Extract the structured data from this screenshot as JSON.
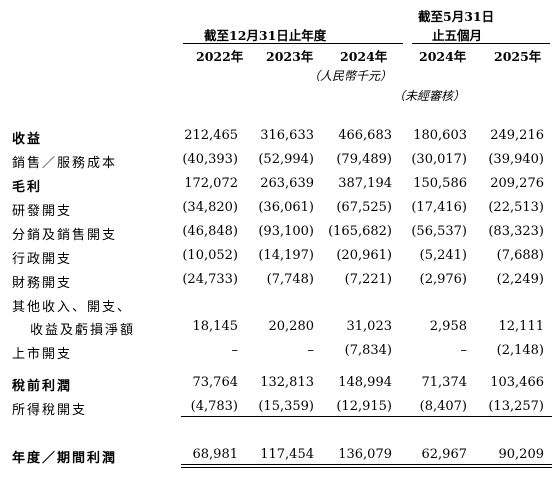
{
  "header": {
    "group_fy": "截至12月31日止年度",
    "group_5m_line1": "截至5月31日",
    "group_5m_line2": "止五個月",
    "years": [
      "2022年",
      "2023年",
      "2024年",
      "2024年",
      "2025年"
    ],
    "unit": "（人民幣千元）",
    "unaudited": "（未經審核）"
  },
  "rows": [
    {
      "label": "收益",
      "bold": true,
      "values": [
        "212,465",
        "316,633",
        "466,683",
        "180,603",
        "249,216"
      ]
    },
    {
      "label": "銷售／服務成本",
      "bold": false,
      "values": [
        "(40,393)",
        "(52,994)",
        "(79,489)",
        "(30,017)",
        "(39,940)"
      ]
    },
    {
      "label": "毛利",
      "bold": true,
      "values": [
        "172,072",
        "263,639",
        "387,194",
        "150,586",
        "209,276"
      ]
    },
    {
      "label": "研發開支",
      "bold": false,
      "values": [
        "(34,820)",
        "(36,061)",
        "(67,525)",
        "(17,416)",
        "(22,513)"
      ]
    },
    {
      "label": "分銷及銷售開支",
      "bold": false,
      "values": [
        "(46,848)",
        "(93,100)",
        "(165,682)",
        "(56,537)",
        "(83,323)"
      ]
    },
    {
      "label": "行政開支",
      "bold": false,
      "values": [
        "(10,052)",
        "(14,197)",
        "(20,961)",
        "(5,241)",
        "(7,688)"
      ]
    },
    {
      "label": "財務開支",
      "bold": false,
      "values": [
        "(24,733)",
        "(7,748)",
        "(7,221)",
        "(2,976)",
        "(2,249)"
      ]
    },
    {
      "label": "其他收入、開支、",
      "bold": false,
      "values": [
        "",
        "",
        "",
        "",
        ""
      ]
    },
    {
      "label": "收益及虧損淨額",
      "bold": false,
      "indent": true,
      "values": [
        "18,145",
        "20,280",
        "31,023",
        "2,958",
        "12,111"
      ]
    },
    {
      "label": "上市開支",
      "bold": false,
      "values": [
        "–",
        "–",
        "(7,834)",
        "–",
        "(2,148)"
      ]
    },
    {
      "label": "稅前利潤",
      "bold": true,
      "values": [
        "73,764",
        "132,813",
        "148,994",
        "71,374",
        "103,466"
      ]
    },
    {
      "label": "所得稅開支",
      "bold": false,
      "values": [
        "(4,783)",
        "(15,359)",
        "(12,915)",
        "(8,407)",
        "(13,257)"
      ]
    },
    {
      "label": "年度／期間利潤",
      "bold": true,
      "values": [
        "68,981",
        "117,454",
        "136,079",
        "62,967",
        "90,209"
      ]
    }
  ]
}
